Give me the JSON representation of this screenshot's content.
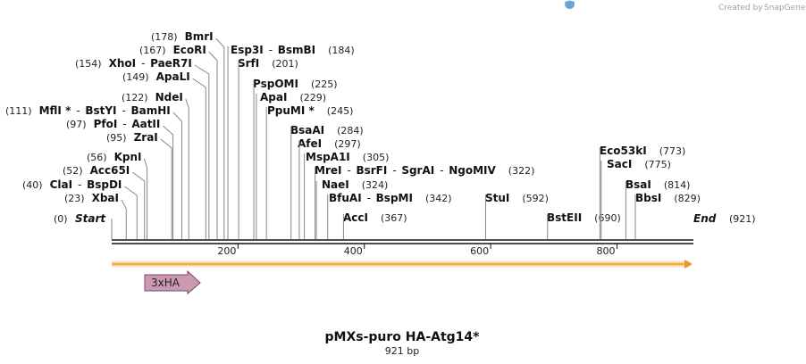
{
  "credit": {
    "text": "Created by",
    "brand": "SnapGene"
  },
  "plasmid": {
    "name": "pMXs-puro HA-Atg14*",
    "length_label": "921 bp",
    "length_bp": 921
  },
  "ruler": {
    "ticks": [
      200,
      400,
      600,
      800
    ]
  },
  "termini": {
    "start": {
      "label": "Start",
      "pos": "(0)"
    },
    "end": {
      "label": "End",
      "pos": "(921)"
    }
  },
  "sites": [
    {
      "pos": "(23)",
      "bp": 23,
      "names": [
        "XbaI"
      ]
    },
    {
      "pos": "(40)",
      "bp": 40,
      "names": [
        "ClaI",
        "BspDI"
      ]
    },
    {
      "pos": "(52)",
      "bp": 52,
      "names": [
        "Acc65I"
      ]
    },
    {
      "pos": "(56)",
      "bp": 56,
      "names": [
        "KpnI"
      ]
    },
    {
      "pos": "(95)",
      "bp": 95,
      "names": [
        "ZraI"
      ]
    },
    {
      "pos": "(97)",
      "bp": 97,
      "names": [
        "PfoI",
        "AatII"
      ]
    },
    {
      "pos": "(111)",
      "bp": 111,
      "names": [
        "MflI *",
        "BstYI",
        "BamHI"
      ]
    },
    {
      "pos": "(122)",
      "bp": 122,
      "names": [
        "NdeI"
      ]
    },
    {
      "pos": "(149)",
      "bp": 149,
      "names": [
        "ApaLI"
      ]
    },
    {
      "pos": "(154)",
      "bp": 154,
      "names": [
        "XhoI",
        "PaeR7I"
      ]
    },
    {
      "pos": "(167)",
      "bp": 167,
      "names": [
        "EcoRI"
      ]
    },
    {
      "pos": "(178)",
      "bp": 178,
      "names": [
        "BmrI"
      ]
    },
    {
      "pos": "(184)",
      "bp": 184,
      "names": [
        "Esp3I",
        "BsmBI"
      ]
    },
    {
      "pos": "(201)",
      "bp": 201,
      "names": [
        "SrfI"
      ]
    },
    {
      "pos": "(225)",
      "bp": 225,
      "names": [
        "PspOMI"
      ]
    },
    {
      "pos": "(229)",
      "bp": 229,
      "names": [
        "ApaI"
      ]
    },
    {
      "pos": "(245)",
      "bp": 245,
      "names": [
        "PpuMI *"
      ]
    },
    {
      "pos": "(284)",
      "bp": 284,
      "names": [
        "BsaAI"
      ]
    },
    {
      "pos": "(297)",
      "bp": 297,
      "names": [
        "AfeI"
      ]
    },
    {
      "pos": "(305)",
      "bp": 305,
      "names": [
        "MspA1I"
      ]
    },
    {
      "pos": "(322)",
      "bp": 322,
      "names": [
        "MreI",
        "BsrFI",
        "SgrAI",
        "NgoMIV"
      ]
    },
    {
      "pos": "(324)",
      "bp": 324,
      "names": [
        "NaeI"
      ]
    },
    {
      "pos": "(342)",
      "bp": 342,
      "names": [
        "BfuAI",
        "BspMI"
      ]
    },
    {
      "pos": "(367)",
      "bp": 367,
      "names": [
        "AccI"
      ]
    },
    {
      "pos": "(592)",
      "bp": 592,
      "names": [
        "StuI"
      ]
    },
    {
      "pos": "(690)",
      "bp": 690,
      "names": [
        "BstEII"
      ]
    },
    {
      "pos": "(773)",
      "bp": 773,
      "names": [
        "Eco53kI"
      ]
    },
    {
      "pos": "(775)",
      "bp": 775,
      "names": [
        "SacI"
      ]
    },
    {
      "pos": "(814)",
      "bp": 814,
      "names": [
        "BsaI"
      ]
    },
    {
      "pos": "(829)",
      "bp": 829,
      "names": [
        "BbsI"
      ]
    }
  ],
  "features": [
    {
      "label": "3xHA",
      "color": "#d4a0b8",
      "stroke": "#7a4a60"
    }
  ],
  "colors": {
    "backbone": "#111111",
    "orf": "#f5b041",
    "orf_edge": "#e8dfc2",
    "site_line": "#888888",
    "brand": "#6aa3d5"
  }
}
